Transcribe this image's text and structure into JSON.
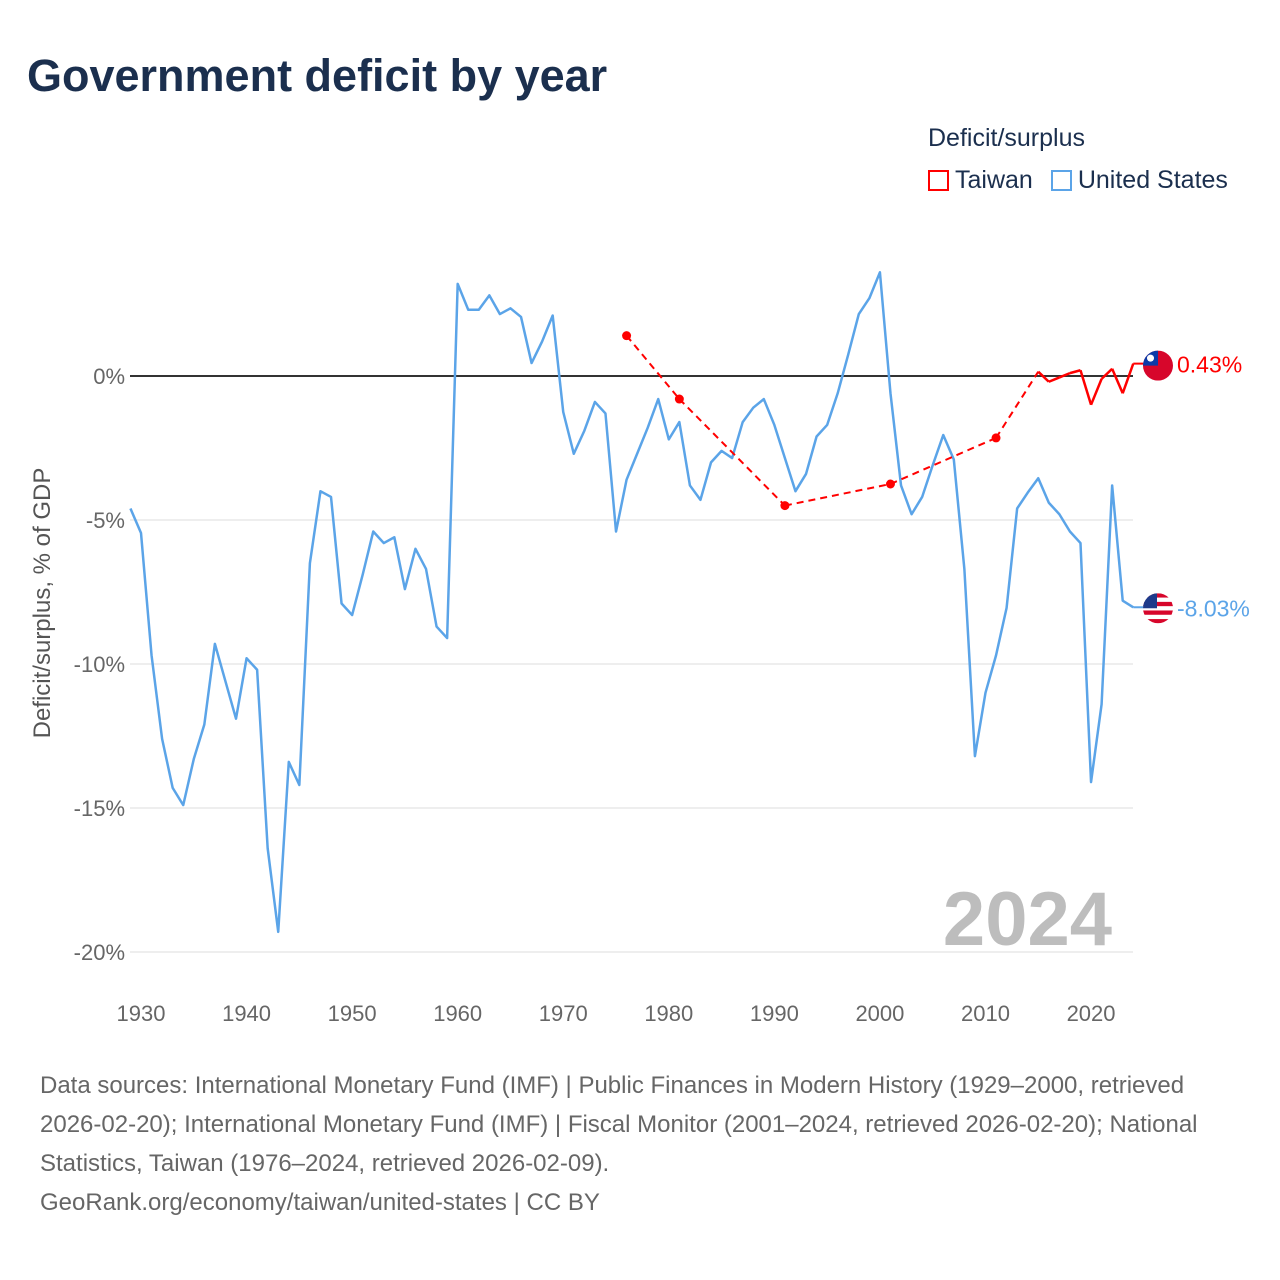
{
  "title": "Government deficit by year",
  "legend": {
    "title": "Deficit/surplus",
    "items": [
      {
        "label": "Taiwan",
        "color": "#ff0000"
      },
      {
        "label": "United States",
        "color": "#5ba4e8"
      }
    ]
  },
  "footer": {
    "sources": "Data sources: International Monetary Fund (IMF) | Public Finances in Modern History (1929–2000, retrieved 2026-02-20); International Monetary Fund (IMF) | Fiscal Monitor (2001–2024, retrieved 2026-02-20); National Statistics, Taiwan (1976–2024, retrieved 2026-02-09).",
    "credit": "GeoRank.org/economy/taiwan/united-states | CC BY"
  },
  "chart_data": {
    "type": "line",
    "title": "Government deficit by year",
    "xlabel": "",
    "ylabel": "Deficit/surplus, % of GDP",
    "xlim": [
      1929,
      2024
    ],
    "ylim": [
      -20,
      3.6
    ],
    "xticks": [
      1930,
      1940,
      1950,
      1960,
      1970,
      1980,
      1990,
      2000,
      2010,
      2020
    ],
    "xtick_labels": [
      "1930",
      "1940",
      "1950",
      "1960",
      "1970",
      "1980",
      "1990",
      "2000",
      "2010",
      "2020"
    ],
    "yticks": [
      0,
      -5,
      -10,
      -15,
      -20
    ],
    "ytick_labels": [
      "0%",
      "-5%",
      "-10%",
      "-15%",
      "-20%"
    ],
    "grid": true,
    "year_label": "2024",
    "legend_position": "top-right",
    "series": [
      {
        "name": "Taiwan",
        "color": "#ff0000",
        "end_label": "0.43%",
        "points": [
          [
            1976,
            1.4
          ],
          [
            1981,
            -0.8
          ],
          [
            1991,
            -4.5
          ],
          [
            2001,
            -3.75
          ],
          [
            2011,
            -2.15
          ],
          [
            2015,
            0.15
          ],
          [
            2016,
            -0.2
          ],
          [
            2017,
            -0.05
          ],
          [
            2018,
            0.1
          ],
          [
            2019,
            0.2
          ],
          [
            2020,
            -1.0
          ],
          [
            2021,
            -0.1
          ],
          [
            2022,
            0.25
          ],
          [
            2023,
            -0.6
          ],
          [
            2024,
            0.43
          ]
        ]
      },
      {
        "name": "United States",
        "color": "#5ba4e8",
        "end_label": "-8.03%",
        "points": [
          [
            1929,
            -4.6
          ],
          [
            1930,
            -5.45
          ],
          [
            1931,
            -9.7
          ],
          [
            1932,
            -12.6
          ],
          [
            1933,
            -14.3
          ],
          [
            1934,
            -14.9
          ],
          [
            1935,
            -13.3
          ],
          [
            1936,
            -12.1
          ],
          [
            1937,
            -9.3
          ],
          [
            1938,
            -10.6
          ],
          [
            1939,
            -11.9
          ],
          [
            1940,
            -9.8
          ],
          [
            1941,
            -10.2
          ],
          [
            1942,
            -16.4
          ],
          [
            1943,
            -19.3
          ],
          [
            1944,
            -13.4
          ],
          [
            1945,
            -14.2
          ],
          [
            1946,
            -6.5
          ],
          [
            1947,
            -4.0
          ],
          [
            1948,
            -4.2
          ],
          [
            1949,
            -7.9
          ],
          [
            1950,
            -8.3
          ],
          [
            1951,
            -6.9
          ],
          [
            1952,
            -5.4
          ],
          [
            1953,
            -5.8
          ],
          [
            1954,
            -5.6
          ],
          [
            1955,
            -7.4
          ],
          [
            1956,
            -6.0
          ],
          [
            1957,
            -6.7
          ],
          [
            1958,
            -8.7
          ],
          [
            1959,
            -9.1
          ],
          [
            1960,
            3.2
          ],
          [
            1961,
            2.3
          ],
          [
            1962,
            2.3
          ],
          [
            1963,
            2.8
          ],
          [
            1964,
            2.15
          ],
          [
            1965,
            2.35
          ],
          [
            1966,
            2.05
          ],
          [
            1967,
            0.45
          ],
          [
            1968,
            1.2
          ],
          [
            1969,
            2.1
          ],
          [
            1970,
            -1.25
          ],
          [
            1971,
            -2.7
          ],
          [
            1972,
            -1.9
          ],
          [
            1973,
            -0.9
          ],
          [
            1974,
            -1.3
          ],
          [
            1975,
            -5.4
          ],
          [
            1976,
            -3.6
          ],
          [
            1977,
            -2.7
          ],
          [
            1978,
            -1.8
          ],
          [
            1979,
            -0.8
          ],
          [
            1980,
            -2.2
          ],
          [
            1981,
            -1.6
          ],
          [
            1982,
            -3.8
          ],
          [
            1983,
            -4.3
          ],
          [
            1984,
            -3.0
          ],
          [
            1985,
            -2.6
          ],
          [
            1986,
            -2.85
          ],
          [
            1987,
            -1.6
          ],
          [
            1988,
            -1.1
          ],
          [
            1989,
            -0.8
          ],
          [
            1990,
            -1.7
          ],
          [
            1991,
            -2.85
          ],
          [
            1992,
            -4.0
          ],
          [
            1993,
            -3.4
          ],
          [
            1994,
            -2.1
          ],
          [
            1995,
            -1.7
          ],
          [
            1996,
            -0.6
          ],
          [
            1997,
            0.75
          ],
          [
            1998,
            2.15
          ],
          [
            1999,
            2.7
          ],
          [
            2000,
            3.6
          ],
          [
            2001,
            -0.6
          ],
          [
            2002,
            -3.8
          ],
          [
            2003,
            -4.8
          ],
          [
            2004,
            -4.2
          ],
          [
            2005,
            -3.1
          ],
          [
            2006,
            -2.05
          ],
          [
            2007,
            -2.9
          ],
          [
            2008,
            -6.7
          ],
          [
            2009,
            -13.2
          ],
          [
            2010,
            -11.0
          ],
          [
            2011,
            -9.7
          ],
          [
            2012,
            -8.05
          ],
          [
            2013,
            -4.6
          ],
          [
            2014,
            -4.05
          ],
          [
            2015,
            -3.55
          ],
          [
            2016,
            -4.4
          ],
          [
            2017,
            -4.8
          ],
          [
            2018,
            -5.4
          ],
          [
            2019,
            -5.8
          ],
          [
            2020,
            -14.1
          ],
          [
            2021,
            -11.4
          ],
          [
            2022,
            -3.8
          ],
          [
            2023,
            -7.8
          ],
          [
            2024,
            -8.03
          ]
        ]
      }
    ]
  }
}
